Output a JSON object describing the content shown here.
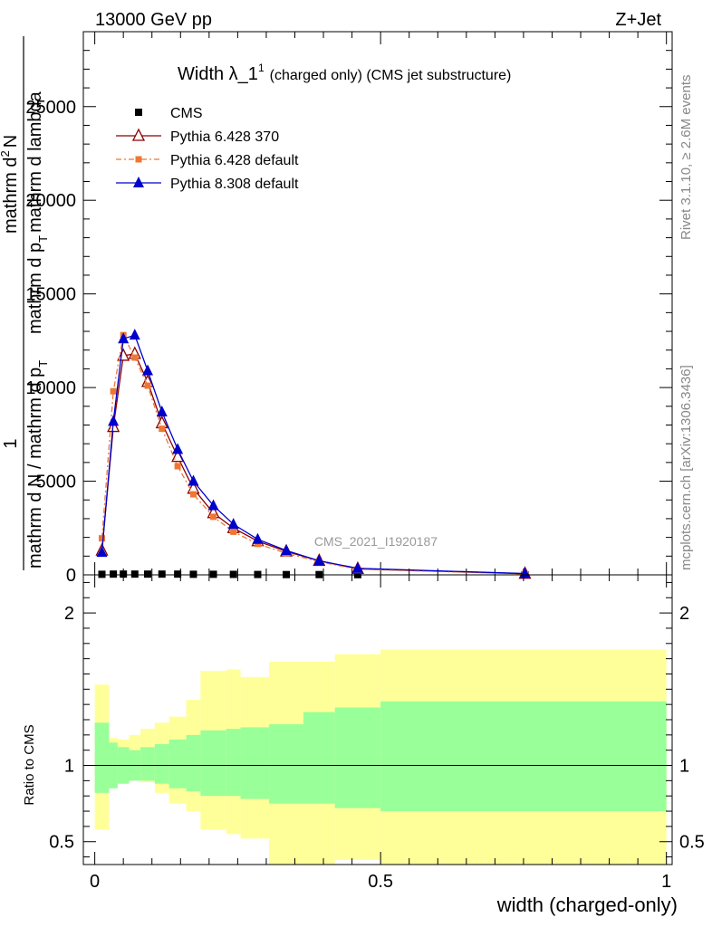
{
  "header": {
    "energy_label": "13000 GeV pp",
    "process_label": "Z+Jet",
    "plot_title_main": "Width λ_1",
    "plot_title_sup": "1",
    "plot_title_sub": "(charged only) (CMS jet substructure)",
    "watermark": "CMS_2021_I1920187",
    "rivet_label": "Rivet 3.1.10, ≥ 2.6M events",
    "mcplots_label": "mcplots.cern.ch [arXiv:1306.3436]"
  },
  "main_ylabel": {
    "numerator": "1",
    "line_a": "mathrm d N / mathrm d p",
    "line_a_sub": "T",
    "line_b": "mathrm d",
    "line_b_sup": "2",
    "line_b_rest": "N",
    "line_c": "mathrm d p",
    "line_c_sub": "T",
    "line_c_rest": "mathrm d lambda"
  },
  "ratio_ylabel": "Ratio to CMS",
  "xlabel": "width (charged-only)",
  "legend": [
    {
      "label": "CMS",
      "color": "#000000",
      "marker": "square"
    },
    {
      "label": "Pythia 6.428 370",
      "color": "#8b0000",
      "marker": "open-triangle"
    },
    {
      "label": "Pythia 6.428 default",
      "color": "#ee7733",
      "marker": "small-square"
    },
    {
      "label": "Pythia 8.308 default",
      "color": "#0000cc",
      "marker": "triangle"
    }
  ],
  "chart_data": [
    {
      "type": "line",
      "panel": "main",
      "xlim": [
        -0.02,
        1.01
      ],
      "ylim": [
        0,
        29000
      ],
      "yticks": [
        0,
        5000,
        10000,
        15000,
        20000,
        25000
      ],
      "ytick_labels": [
        "0",
        "5000",
        "10000",
        "15000",
        "20000",
        "25000"
      ],
      "x": [
        0.0125,
        0.0325,
        0.05,
        0.07,
        0.0925,
        0.1175,
        0.145,
        0.1725,
        0.2075,
        0.2425,
        0.285,
        0.335,
        0.3925,
        0.46,
        0.7525
      ],
      "series": [
        {
          "name": "CMS",
          "values": [
            30,
            40,
            40,
            40,
            40,
            40,
            40,
            30,
            30,
            25,
            20,
            15,
            15,
            10,
            5
          ]
        },
        {
          "name": "Pythia 6.428 370",
          "values": [
            1300,
            7900,
            11700,
            11800,
            10300,
            8100,
            6300,
            4600,
            3300,
            2500,
            1800,
            1250,
            750,
            320,
            60
          ]
        },
        {
          "name": "Pythia 6.428 default",
          "values": [
            1950,
            9800,
            12800,
            11600,
            10100,
            7800,
            5800,
            4300,
            3100,
            2300,
            1650,
            1150,
            700,
            300,
            50
          ]
        },
        {
          "name": "Pythia 8.308 default",
          "values": [
            1200,
            8200,
            12600,
            12800,
            10900,
            8700,
            6700,
            5000,
            3700,
            2700,
            1900,
            1300,
            750,
            350,
            70
          ]
        }
      ]
    },
    {
      "type": "area",
      "panel": "ratio",
      "ylabel": "Ratio to CMS",
      "xlabel": "width (charged-only)",
      "xlim": [
        -0.02,
        1.01
      ],
      "ylim": [
        0.35,
        2.25
      ],
      "xticks": [
        0,
        0.5,
        1
      ],
      "xtick_labels": [
        "0",
        "0.5",
        "1"
      ],
      "yticks": [
        0.5,
        1,
        2
      ],
      "ytick_labels": [
        "0.5",
        "1",
        "2"
      ],
      "reference_line": 1,
      "bin_edges": [
        0.0,
        0.025,
        0.04,
        0.06,
        0.08,
        0.105,
        0.13,
        0.16,
        0.185,
        0.23,
        0.255,
        0.305,
        0.365,
        0.42,
        0.5,
        1.0
      ],
      "bands": [
        {
          "name": "stat",
          "color": "#99ff99",
          "low": [
            0.82,
            0.85,
            0.88,
            0.9,
            0.9,
            0.88,
            0.85,
            0.83,
            0.8,
            0.8,
            0.78,
            0.75,
            0.75,
            0.72,
            0.7
          ],
          "high": [
            1.28,
            1.15,
            1.12,
            1.1,
            1.12,
            1.14,
            1.17,
            1.2,
            1.23,
            1.24,
            1.25,
            1.27,
            1.35,
            1.38,
            1.42
          ]
        },
        {
          "name": "syst",
          "color": "#ffff99",
          "low": [
            0.58,
            0.92,
            0.93,
            0.92,
            0.89,
            0.82,
            0.75,
            0.7,
            0.58,
            0.55,
            0.52,
            0.35,
            0.35,
            0.38,
            0.35
          ],
          "high": [
            1.53,
            1.18,
            1.17,
            1.2,
            1.24,
            1.28,
            1.32,
            1.43,
            1.62,
            1.63,
            1.58,
            1.68,
            1.68,
            1.73,
            1.76
          ]
        }
      ]
    }
  ]
}
